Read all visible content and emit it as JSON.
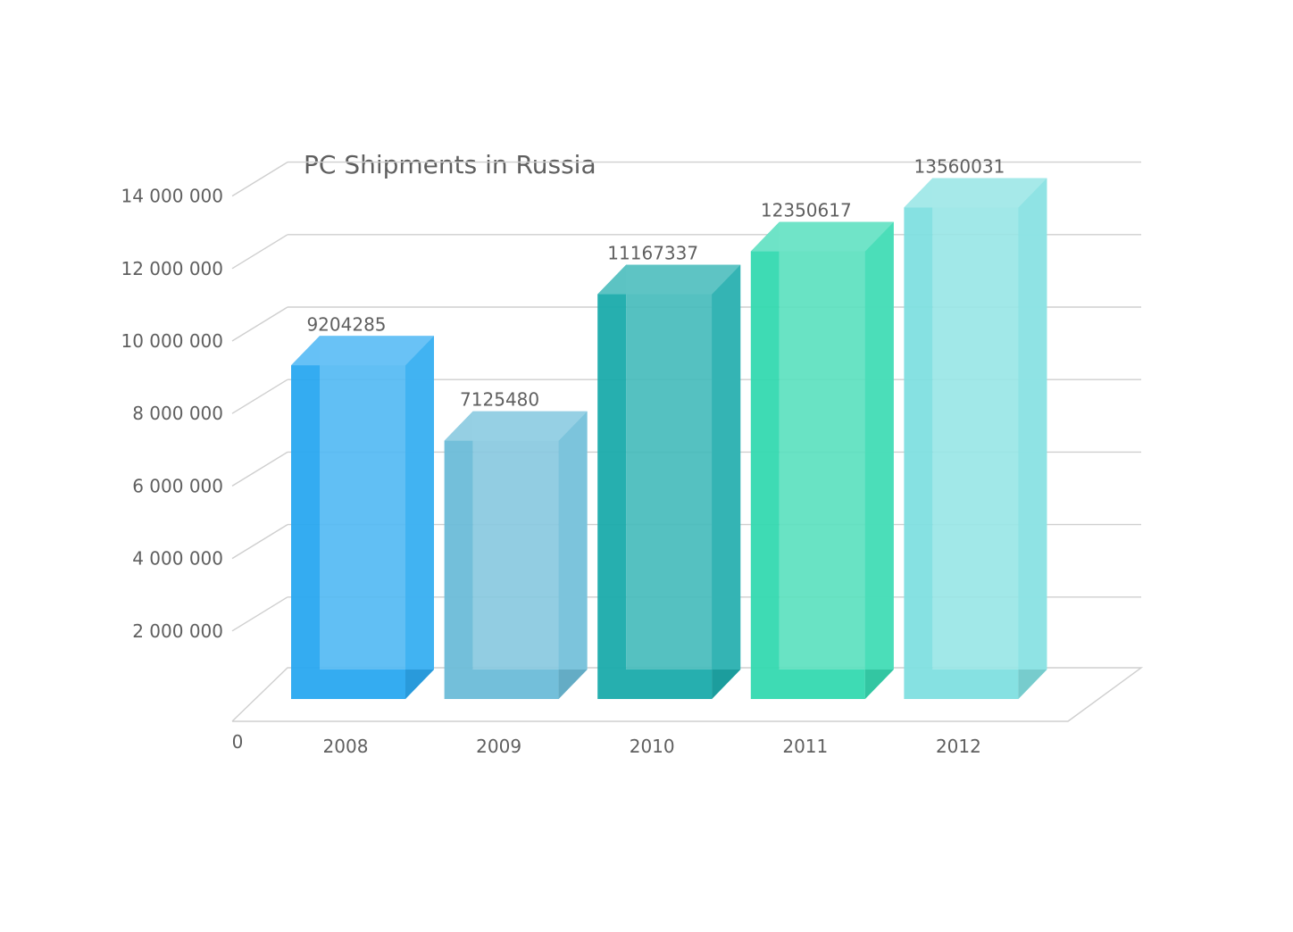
{
  "chart_data": {
    "type": "bar",
    "title": "PC Shipments in Russia",
    "xlabel": "",
    "ylabel": "",
    "categories": [
      "2008",
      "2009",
      "2010",
      "2011",
      "2012"
    ],
    "values": [
      9204285,
      7125480,
      11167337,
      12350617,
      13560031
    ],
    "data_labels": [
      "9204285",
      "7125480",
      "11167337",
      "12350617",
      "13560031"
    ],
    "ylim": [
      0,
      14000000
    ],
    "y_ticks": [
      0,
      2000000,
      4000000,
      6000000,
      8000000,
      10000000,
      12000000,
      14000000
    ],
    "y_tick_labels": [
      "0",
      "2 000 000",
      "4 000 000",
      "6 000 000",
      "8 000 000",
      "10 000 000",
      "12 000 000",
      "14 000 000"
    ],
    "grid": true,
    "style": "3d",
    "colors": [
      "#29a8f0",
      "#6bbcd8",
      "#1aabab",
      "#34d9b0",
      "#80dfe0"
    ]
  }
}
